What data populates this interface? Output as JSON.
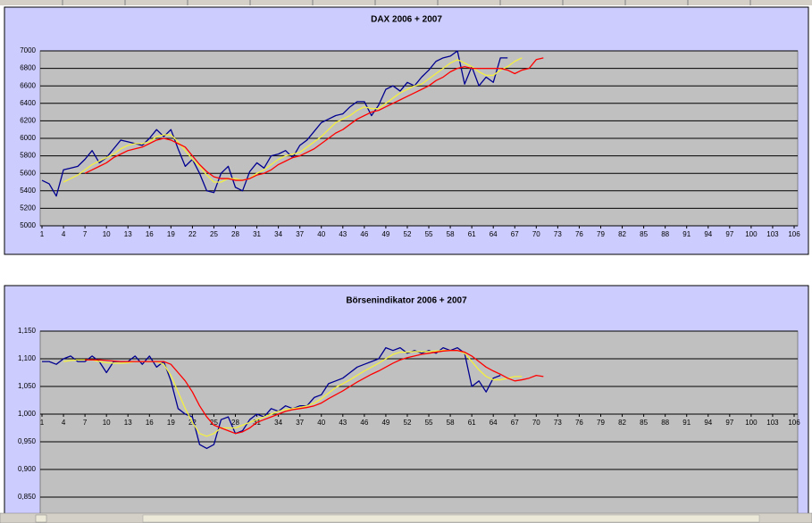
{
  "chart_data": [
    {
      "type": "line",
      "title": "DAX 2006 + 2007",
      "x": [
        1,
        2,
        3,
        4,
        5,
        6,
        7,
        8,
        9,
        10,
        11,
        12,
        13,
        14,
        15,
        16,
        17,
        18,
        19,
        20,
        21,
        22,
        23,
        24,
        25,
        26,
        27,
        28,
        29,
        30,
        31,
        32,
        33,
        34,
        35,
        36,
        37,
        38,
        39,
        40,
        41,
        42,
        43,
        44,
        45,
        46,
        47,
        48,
        49,
        50,
        51,
        52,
        53,
        54,
        55,
        56,
        57,
        58,
        59,
        60,
        61,
        62,
        63,
        64,
        65,
        66,
        67,
        68,
        69,
        70,
        71
      ],
      "xlim": [
        1,
        106
      ],
      "xticks": [
        1,
        4,
        7,
        10,
        13,
        16,
        19,
        22,
        25,
        28,
        31,
        34,
        37,
        40,
        43,
        46,
        49,
        52,
        55,
        58,
        61,
        64,
        67,
        70,
        73,
        76,
        79,
        82,
        85,
        88,
        91,
        94,
        97,
        100,
        103,
        106
      ],
      "ylim": [
        5000,
        7000
      ],
      "yticks": [
        5000,
        5200,
        5400,
        5600,
        5800,
        6000,
        6200,
        6400,
        6600,
        6800,
        7000
      ],
      "grid": true,
      "series": [
        {
          "color": "#000090",
          "values": [
            5520,
            5480,
            5340,
            5640,
            5660,
            5680,
            5760,
            5860,
            5720,
            5780,
            5880,
            5980,
            5960,
            5940,
            5920,
            6000,
            6100,
            6020,
            6100,
            5880,
            5680,
            5760,
            5600,
            5400,
            5380,
            5600,
            5680,
            5440,
            5400,
            5620,
            5720,
            5660,
            5800,
            5820,
            5860,
            5780,
            5920,
            5980,
            6080,
            6180,
            6220,
            6260,
            6280,
            6360,
            6420,
            6420,
            6260,
            6380,
            6560,
            6600,
            6540,
            6640,
            6600,
            6700,
            6780,
            6880,
            6920,
            6940,
            7000,
            6620,
            6820,
            6600,
            6700,
            6640,
            6920,
            6920,
            null,
            null,
            null,
            null,
            null
          ]
        },
        {
          "color": "#f4f040",
          "values": [
            null,
            null,
            null,
            5500,
            5540,
            5580,
            5640,
            5700,
            5740,
            5780,
            5820,
            5880,
            5920,
            5940,
            5940,
            5960,
            6020,
            6040,
            6040,
            5960,
            5860,
            5760,
            5680,
            5580,
            5500,
            5500,
            5540,
            5540,
            5520,
            5540,
            5600,
            5640,
            5700,
            5760,
            5800,
            5820,
            5840,
            5900,
            5960,
            6020,
            6100,
            6180,
            6220,
            6260,
            6320,
            6360,
            6340,
            6340,
            6400,
            6460,
            6520,
            6560,
            6600,
            6620,
            6680,
            6740,
            6800,
            6860,
            6900,
            6860,
            6820,
            6760,
            6720,
            6720,
            6780,
            6820,
            6880,
            6920,
            null,
            null,
            null
          ]
        },
        {
          "color": "#ff0000",
          "values": [
            null,
            null,
            null,
            null,
            null,
            null,
            5600,
            5640,
            5680,
            5720,
            5780,
            5820,
            5860,
            5880,
            5900,
            5940,
            5980,
            6000,
            5980,
            5940,
            5900,
            5800,
            5700,
            5620,
            5560,
            5540,
            5540,
            5520,
            5520,
            5540,
            5580,
            5600,
            5640,
            5700,
            5740,
            5780,
            5800,
            5840,
            5880,
            5940,
            6000,
            6060,
            6100,
            6160,
            6220,
            6260,
            6300,
            6320,
            6360,
            6400,
            6440,
            6480,
            6520,
            6560,
            6600,
            6660,
            6700,
            6760,
            6800,
            6820,
            6800,
            6800,
            6800,
            6800,
            6800,
            6780,
            6740,
            6780,
            6800,
            6900,
            6920
          ]
        }
      ]
    },
    {
      "type": "line",
      "title": "Börsenindikator 2006 + 2007",
      "x": [
        1,
        2,
        3,
        4,
        5,
        6,
        7,
        8,
        9,
        10,
        11,
        12,
        13,
        14,
        15,
        16,
        17,
        18,
        19,
        20,
        21,
        22,
        23,
        24,
        25,
        26,
        27,
        28,
        29,
        30,
        31,
        32,
        33,
        34,
        35,
        36,
        37,
        38,
        39,
        40,
        41,
        42,
        43,
        44,
        45,
        46,
        47,
        48,
        49,
        50,
        51,
        52,
        53,
        54,
        55,
        56,
        57,
        58,
        59,
        60,
        61,
        62,
        63,
        64,
        65,
        66,
        67,
        68,
        69,
        70,
        71
      ],
      "xlim": [
        1,
        106
      ],
      "xticks": [
        1,
        4,
        7,
        10,
        13,
        16,
        19,
        22,
        25,
        28,
        31,
        34,
        37,
        40,
        43,
        46,
        49,
        52,
        55,
        58,
        61,
        64,
        67,
        70,
        73,
        76,
        79,
        82,
        85,
        88,
        91,
        94,
        97,
        100,
        103,
        106
      ],
      "ylim": [
        0.8,
        1.15
      ],
      "yticks": [
        {
          "value": 0.85,
          "label": "0,850"
        },
        {
          "value": 0.9,
          "label": "0,900"
        },
        {
          "value": 0.95,
          "label": "0,950"
        },
        {
          "value": 1,
          "label": "1,000"
        },
        {
          "value": 1.05,
          "label": "1,050"
        },
        {
          "value": 1.1,
          "label": "1,100"
        },
        {
          "value": 1.15,
          "label": "1,150"
        }
      ],
      "xaxis_crosses": 1,
      "grid": true,
      "series": [
        {
          "color": "#000090",
          "values": [
            1.095,
            1.095,
            1.09,
            1.1,
            1.105,
            1.095,
            1.095,
            1.105,
            1.095,
            1.075,
            1.095,
            1.095,
            1.095,
            1.105,
            1.09,
            1.105,
            1.085,
            1.095,
            1.06,
            1.01,
            1.0,
            0.995,
            0.945,
            0.938,
            0.945,
            0.99,
            0.995,
            0.965,
            0.97,
            0.99,
            1.0,
            0.995,
            1.01,
            1.005,
            1.015,
            1.01,
            1.015,
            1.015,
            1.03,
            1.035,
            1.055,
            1.06,
            1.065,
            1.075,
            1.085,
            1.09,
            1.095,
            1.1,
            1.12,
            1.115,
            1.12,
            1.11,
            1.115,
            1.11,
            1.115,
            1.11,
            1.12,
            1.115,
            1.12,
            1.11,
            1.05,
            1.06,
            1.04,
            1.065,
            1.07,
            null,
            null,
            null,
            null,
            null,
            null
          ]
        },
        {
          "color": "#f4f040",
          "values": [
            null,
            null,
            null,
            1.095,
            1.097,
            1.098,
            1.098,
            1.098,
            1.095,
            1.093,
            1.092,
            1.092,
            1.093,
            1.095,
            1.095,
            1.095,
            1.095,
            1.09,
            1.07,
            1.04,
            1.01,
            0.985,
            0.965,
            0.96,
            0.965,
            0.975,
            0.975,
            0.975,
            0.98,
            0.985,
            0.99,
            0.995,
            1.0,
            1.005,
            1.008,
            1.01,
            1.012,
            1.015,
            1.02,
            1.028,
            1.038,
            1.048,
            1.055,
            1.062,
            1.07,
            1.078,
            1.085,
            1.092,
            1.1,
            1.108,
            1.112,
            1.112,
            1.113,
            1.113,
            1.113,
            1.114,
            1.115,
            1.115,
            1.115,
            1.11,
            1.095,
            1.08,
            1.068,
            1.062,
            1.062,
            1.065,
            1.068,
            1.068,
            null,
            null,
            null
          ]
        },
        {
          "color": "#ff0000",
          "values": [
            null,
            null,
            null,
            null,
            null,
            null,
            1.098,
            1.098,
            1.098,
            1.097,
            1.096,
            1.095,
            1.095,
            1.095,
            1.095,
            1.095,
            1.095,
            1.095,
            1.09,
            1.075,
            1.06,
            1.04,
            1.015,
            0.995,
            0.98,
            0.975,
            0.97,
            0.965,
            0.968,
            0.975,
            0.985,
            0.99,
            0.995,
            1.0,
            1.005,
            1.008,
            1.01,
            1.012,
            1.015,
            1.02,
            1.028,
            1.035,
            1.042,
            1.05,
            1.058,
            1.065,
            1.072,
            1.078,
            1.085,
            1.092,
            1.098,
            1.102,
            1.105,
            1.108,
            1.11,
            1.112,
            1.114,
            1.115,
            1.115,
            1.112,
            1.105,
            1.095,
            1.085,
            1.078,
            1.072,
            1.065,
            1.06,
            1.062,
            1.065,
            1.07,
            1.068
          ]
        }
      ]
    }
  ]
}
